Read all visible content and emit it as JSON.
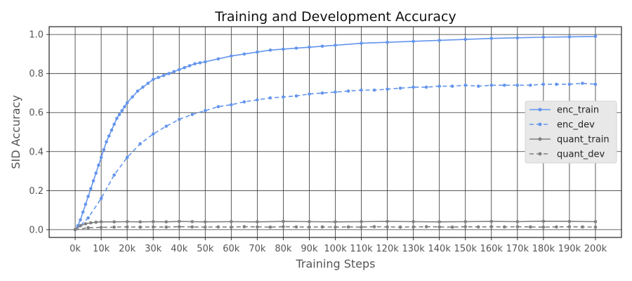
{
  "chart_data": {
    "type": "line",
    "title": "Training and Development Accuracy",
    "xlabel": "Training Steps",
    "ylabel": "SID Accuracy",
    "xlim": [
      -10000,
      210000
    ],
    "ylim": [
      -0.04,
      1.04
    ],
    "x_ticks": [
      0,
      10000,
      20000,
      30000,
      40000,
      50000,
      60000,
      70000,
      80000,
      90000,
      100000,
      110000,
      120000,
      130000,
      140000,
      150000,
      160000,
      170000,
      180000,
      190000,
      200000
    ],
    "x_tick_labels": [
      "0k",
      "10k",
      "20k",
      "30k",
      "40k",
      "50k",
      "60k",
      "70k",
      "80k",
      "90k",
      "100k",
      "110k",
      "120k",
      "130k",
      "140k",
      "150k",
      "160k",
      "170k",
      "180k",
      "190k",
      "200k"
    ],
    "y_ticks": [
      0.0,
      0.2,
      0.4,
      0.6,
      0.8,
      1.0
    ],
    "y_tick_labels": [
      "0.0",
      "0.2",
      "0.4",
      "0.6",
      "0.8",
      "1.0"
    ],
    "grid": true,
    "legend_position": "center-right",
    "series": [
      {
        "name": "enc_train",
        "color": "#6495ED",
        "dash": "solid",
        "x": [
          0,
          1000,
          2000,
          3000,
          4000,
          5000,
          6000,
          7000,
          8000,
          9000,
          10000,
          11000,
          12000,
          13000,
          14000,
          15000,
          16000,
          17000,
          18000,
          19000,
          20000,
          22000,
          24000,
          26000,
          28000,
          30000,
          32000,
          34000,
          36000,
          38000,
          40000,
          42000,
          44000,
          46000,
          48000,
          50000,
          55000,
          60000,
          65000,
          70000,
          75000,
          80000,
          85000,
          90000,
          95000,
          100000,
          110000,
          120000,
          130000,
          140000,
          150000,
          160000,
          170000,
          180000,
          190000,
          200000
        ],
        "y": [
          0.0,
          0.02,
          0.05,
          0.09,
          0.13,
          0.17,
          0.21,
          0.25,
          0.29,
          0.33,
          0.37,
          0.41,
          0.45,
          0.48,
          0.51,
          0.54,
          0.57,
          0.59,
          0.61,
          0.63,
          0.65,
          0.68,
          0.71,
          0.73,
          0.75,
          0.77,
          0.78,
          0.79,
          0.8,
          0.81,
          0.82,
          0.83,
          0.84,
          0.85,
          0.855,
          0.86,
          0.875,
          0.89,
          0.9,
          0.91,
          0.92,
          0.925,
          0.93,
          0.935,
          0.94,
          0.945,
          0.955,
          0.96,
          0.965,
          0.97,
          0.975,
          0.98,
          0.983,
          0.986,
          0.988,
          0.99
        ]
      },
      {
        "name": "enc_dev",
        "color": "#6495ED",
        "dash": "dashed",
        "x": [
          0,
          2000,
          5000,
          10000,
          15000,
          20000,
          25000,
          30000,
          35000,
          40000,
          45000,
          50000,
          55000,
          60000,
          65000,
          70000,
          75000,
          80000,
          85000,
          90000,
          95000,
          100000,
          105000,
          110000,
          115000,
          120000,
          125000,
          130000,
          135000,
          140000,
          145000,
          150000,
          155000,
          160000,
          165000,
          170000,
          175000,
          180000,
          185000,
          190000,
          195000,
          200000
        ],
        "y": [
          0.0,
          0.02,
          0.06,
          0.16,
          0.28,
          0.37,
          0.44,
          0.49,
          0.53,
          0.565,
          0.59,
          0.61,
          0.63,
          0.64,
          0.655,
          0.665,
          0.675,
          0.68,
          0.685,
          0.695,
          0.7,
          0.705,
          0.71,
          0.715,
          0.715,
          0.72,
          0.725,
          0.73,
          0.73,
          0.735,
          0.735,
          0.74,
          0.735,
          0.74,
          0.74,
          0.74,
          0.74,
          0.745,
          0.745,
          0.745,
          0.75,
          0.745
        ]
      },
      {
        "name": "quant_train",
        "color": "#808080",
        "dash": "solid",
        "x": [
          0,
          2000,
          4000,
          6000,
          8000,
          10000,
          15000,
          20000,
          25000,
          30000,
          35000,
          40000,
          45000,
          50000,
          60000,
          70000,
          80000,
          90000,
          100000,
          110000,
          120000,
          130000,
          140000,
          150000,
          160000,
          170000,
          180000,
          190000,
          200000
        ],
        "y": [
          0.0,
          0.02,
          0.03,
          0.035,
          0.038,
          0.04,
          0.04,
          0.041,
          0.04,
          0.041,
          0.04,
          0.042,
          0.041,
          0.04,
          0.041,
          0.04,
          0.042,
          0.041,
          0.04,
          0.041,
          0.042,
          0.041,
          0.04,
          0.041,
          0.042,
          0.041,
          0.043,
          0.042,
          0.041
        ]
      },
      {
        "name": "quant_dev",
        "color": "#808080",
        "dash": "dashed",
        "x": [
          0,
          5000,
          10000,
          15000,
          20000,
          25000,
          30000,
          35000,
          40000,
          45000,
          50000,
          55000,
          60000,
          65000,
          70000,
          75000,
          80000,
          85000,
          90000,
          95000,
          100000,
          105000,
          110000,
          115000,
          120000,
          125000,
          130000,
          135000,
          140000,
          145000,
          150000,
          155000,
          160000,
          165000,
          170000,
          175000,
          180000,
          185000,
          190000,
          195000,
          200000
        ],
        "y": [
          0.0,
          0.01,
          0.012,
          0.013,
          0.014,
          0.013,
          0.014,
          0.013,
          0.015,
          0.014,
          0.013,
          0.014,
          0.013,
          0.015,
          0.014,
          0.013,
          0.015,
          0.014,
          0.013,
          0.014,
          0.013,
          0.014,
          0.013,
          0.015,
          0.014,
          0.013,
          0.014,
          0.015,
          0.014,
          0.013,
          0.015,
          0.014,
          0.015,
          0.014,
          0.015,
          0.014,
          0.013,
          0.014,
          0.015,
          0.014,
          0.013
        ]
      }
    ]
  }
}
